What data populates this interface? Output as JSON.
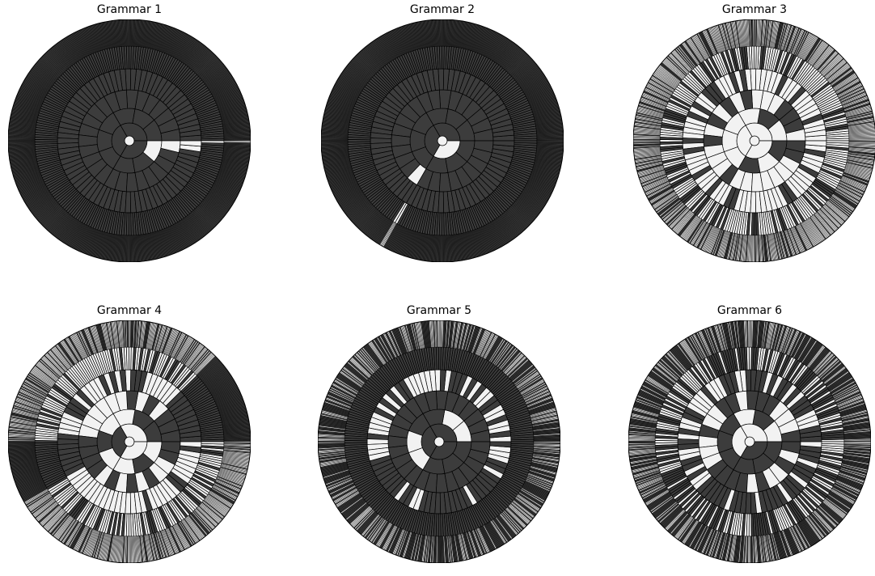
{
  "chart_data": [
    {
      "type": "sunburst",
      "title": "Grammar 1",
      "branching": [
        2,
        3,
        3,
        3,
        3,
        3,
        3
      ],
      "colors": {
        "filled": "#3c3c3c",
        "empty": "#f2f2f2",
        "edge": "#000000"
      },
      "empty_wedges": [
        {
          "ring": 1,
          "start_deg": 0,
          "end_deg": -45
        },
        {
          "ring": 2,
          "start_deg": 0,
          "end_deg": -30
        },
        {
          "ring": 3,
          "start_deg": 0,
          "end_deg": -15
        },
        {
          "ring": 4,
          "start_deg": 0,
          "end_deg": -6.7
        },
        {
          "ring": 5,
          "start_deg": 0,
          "end_deg": -2.2
        },
        {
          "ring": 6,
          "start_deg": 0,
          "end_deg": -0.75
        }
      ]
    },
    {
      "type": "sunburst",
      "title": "Grammar 2",
      "branching": [
        2,
        3,
        3,
        3,
        3,
        3,
        3
      ],
      "colors": {
        "filled": "#3c3c3c",
        "empty": "#f2f2f2",
        "edge": "#000000"
      },
      "empty_wedges": [
        {
          "ring": 1,
          "start_deg": -45,
          "end_deg": -90
        },
        {
          "ring": 3,
          "start_deg": -120,
          "end_deg": -135
        },
        {
          "ring": 5,
          "start_deg": -118,
          "end_deg": -122
        },
        {
          "ring": 6,
          "start_deg": -119,
          "end_deg": -121
        }
      ]
    },
    {
      "type": "sunburst",
      "title": "Grammar 3",
      "branching": [
        2,
        3,
        3,
        3,
        3,
        3,
        3
      ],
      "colors": {
        "filled": "#3c3c3c",
        "empty": "#f2f2f2",
        "edge": "#000000"
      },
      "pattern": "random",
      "fill_probability": [
        0.0,
        0.25,
        0.35,
        0.4,
        0.45,
        0.5,
        0.5
      ],
      "seed": 3,
      "empty_ranges_deg": [
        [
          -90,
          90
        ]
      ]
    },
    {
      "type": "sunburst",
      "title": "Grammar 4",
      "branching": [
        2,
        3,
        3,
        3,
        3,
        3,
        3
      ],
      "colors": {
        "filled": "#3c3c3c",
        "empty": "#f2f2f2",
        "edge": "#000000"
      },
      "pattern": "random",
      "fill_probability": [
        0.0,
        0.1,
        0.15,
        0.2,
        0.25,
        0.3,
        0.3
      ],
      "seed": 4,
      "dark_ranges_deg": [
        [
          0,
          45
        ],
        [
          180,
          210
        ]
      ]
    },
    {
      "type": "sunburst",
      "title": "Grammar 5",
      "branching": [
        2,
        3,
        3,
        3,
        3,
        3,
        3
      ],
      "colors": {
        "filled": "#3c3c3c",
        "empty": "#f2f2f2",
        "edge": "#000000"
      },
      "pattern": "alternating",
      "ring_empty_fraction": [
        1.0,
        0.0,
        0.45,
        0.0,
        0.45,
        0.0,
        0.4
      ],
      "seed": 5
    },
    {
      "type": "sunburst",
      "title": "Grammar 6",
      "branching": [
        2,
        3,
        3,
        3,
        3,
        3,
        3
      ],
      "colors": {
        "filled": "#3c3c3c",
        "empty": "#f2f2f2",
        "edge": "#000000"
      },
      "pattern": "alternating",
      "ring_empty_fraction": [
        1.0,
        0.45,
        0.45,
        0.45,
        0.45,
        0.45,
        0.4
      ],
      "seed": 6
    }
  ]
}
